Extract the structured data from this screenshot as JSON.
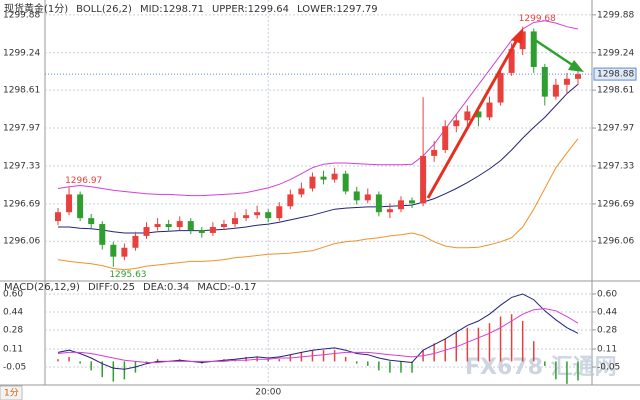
{
  "chart_data": [
    {
      "type": "candlestick",
      "title": "现货黄金(1分)",
      "indicator": "BOLL(26,2)",
      "categories": [
        null,
        null,
        null,
        null,
        null,
        null,
        null,
        null,
        null,
        null,
        null,
        null,
        null,
        null,
        null,
        null,
        null,
        null,
        null,
        "20:00",
        null,
        null,
        null,
        null,
        null,
        null,
        null,
        null,
        null,
        null,
        null,
        null,
        null,
        null,
        null,
        null,
        null,
        null,
        null,
        null,
        null,
        null,
        null,
        null,
        null,
        null,
        null,
        null
      ],
      "open": [
        1296.4,
        1296.55,
        1296.85,
        1296.45,
        1296.35,
        1296.0,
        1295.8,
        1295.95,
        1296.15,
        1296.3,
        1296.35,
        1296.3,
        1296.4,
        1296.25,
        1296.2,
        1296.3,
        1296.35,
        1296.45,
        1296.5,
        1296.55,
        1296.45,
        1296.65,
        1296.85,
        1296.95,
        1297.15,
        1297.1,
        1297.2,
        1296.9,
        1296.75,
        1296.85,
        1296.55,
        1296.6,
        1296.75,
        1296.7,
        1297.5,
        1297.6,
        1298.0,
        1298.1,
        1298.25,
        1298.15,
        1298.4,
        1298.9,
        1299.3,
        1299.6,
        1299.0,
        1298.5,
        1298.7,
        1298.8
      ],
      "high": [
        1296.62,
        1296.97,
        1296.9,
        1296.52,
        1296.4,
        1296.05,
        1296.02,
        1296.22,
        1296.38,
        1296.45,
        1296.42,
        1296.48,
        1296.45,
        1296.3,
        1296.38,
        1296.42,
        1296.55,
        1296.6,
        1296.66,
        1296.6,
        1296.72,
        1296.93,
        1297.05,
        1297.22,
        1297.25,
        1297.3,
        1297.25,
        1296.98,
        1296.95,
        1296.9,
        1296.7,
        1296.82,
        1296.8,
        1298.49,
        1297.75,
        1298.1,
        1298.2,
        1298.35,
        1298.3,
        1298.5,
        1299.0,
        1299.4,
        1299.68,
        1299.65,
        1299.05,
        1298.8,
        1298.9,
        1298.95
      ],
      "low": [
        1296.33,
        1296.5,
        1296.4,
        1296.28,
        1295.92,
        1295.63,
        1295.74,
        1295.9,
        1296.1,
        1296.24,
        1296.22,
        1296.25,
        1296.18,
        1296.12,
        1296.15,
        1296.25,
        1296.3,
        1296.4,
        1296.44,
        1296.38,
        1296.4,
        1296.6,
        1296.8,
        1296.9,
        1297.02,
        1297.05,
        1296.85,
        1296.68,
        1296.7,
        1296.48,
        1296.45,
        1296.55,
        1296.62,
        1296.65,
        1297.4,
        1297.55,
        1297.9,
        1298.0,
        1298.0,
        1298.1,
        1298.35,
        1298.85,
        1299.2,
        1298.9,
        1298.35,
        1298.45,
        1298.55,
        1298.7
      ],
      "close": [
        1296.55,
        1296.85,
        1296.45,
        1296.35,
        1296.0,
        1295.8,
        1295.95,
        1296.15,
        1296.3,
        1296.35,
        1296.3,
        1296.4,
        1296.25,
        1296.2,
        1296.3,
        1296.35,
        1296.45,
        1296.5,
        1296.55,
        1296.45,
        1296.65,
        1296.85,
        1296.95,
        1297.15,
        1297.1,
        1297.2,
        1296.9,
        1296.75,
        1296.85,
        1296.55,
        1296.6,
        1296.75,
        1296.7,
        1297.5,
        1297.6,
        1298.0,
        1298.1,
        1298.25,
        1298.15,
        1298.4,
        1298.9,
        1299.3,
        1299.6,
        1299.0,
        1298.5,
        1298.7,
        1298.8,
        1298.88
      ],
      "up_color": "#e8413d",
      "down_color": "#2e9e2e",
      "series": [
        {
          "name": "MID:1298.71",
          "color": "#23237a",
          "values": [
            1296.3,
            1296.3,
            1296.28,
            1296.27,
            1296.25,
            1296.22,
            1296.2,
            1296.2,
            1296.2,
            1296.22,
            1296.23,
            1296.24,
            1296.24,
            1296.24,
            1296.25,
            1296.26,
            1296.28,
            1296.3,
            1296.33,
            1296.35,
            1296.38,
            1296.42,
            1296.46,
            1296.5,
            1296.55,
            1296.6,
            1296.62,
            1296.63,
            1296.64,
            1296.64,
            1296.65,
            1296.66,
            1296.67,
            1296.72,
            1296.78,
            1296.86,
            1296.95,
            1297.05,
            1297.16,
            1297.28,
            1297.42,
            1297.6,
            1297.8,
            1297.98,
            1298.15,
            1298.35,
            1298.55,
            1298.71
          ]
        },
        {
          "name": "UPPER:1299.64",
          "color": "#d63fd6",
          "values": [
            1296.95,
            1296.98,
            1297.0,
            1296.98,
            1296.95,
            1296.92,
            1296.9,
            1296.88,
            1296.86,
            1296.85,
            1296.85,
            1296.84,
            1296.83,
            1296.83,
            1296.84,
            1296.85,
            1296.86,
            1296.88,
            1296.92,
            1296.96,
            1297.02,
            1297.1,
            1297.2,
            1297.3,
            1297.36,
            1297.38,
            1297.38,
            1297.37,
            1297.36,
            1297.35,
            1297.35,
            1297.35,
            1297.36,
            1297.5,
            1297.7,
            1297.95,
            1298.2,
            1298.45,
            1298.7,
            1298.95,
            1299.2,
            1299.45,
            1299.64,
            1299.75,
            1299.78,
            1299.74,
            1299.68,
            1299.64
          ]
        },
        {
          "name": "LOWER:1297.79",
          "color": "#f0922a",
          "values": [
            1295.75,
            1295.72,
            1295.7,
            1295.68,
            1295.65,
            1295.6,
            1295.58,
            1295.6,
            1295.64,
            1295.66,
            1295.68,
            1295.7,
            1295.72,
            1295.72,
            1295.73,
            1295.75,
            1295.78,
            1295.8,
            1295.82,
            1295.84,
            1295.85,
            1295.86,
            1295.88,
            1295.9,
            1295.96,
            1296.02,
            1296.05,
            1296.07,
            1296.1,
            1296.12,
            1296.15,
            1296.17,
            1296.2,
            1296.15,
            1296.05,
            1295.98,
            1295.95,
            1295.95,
            1295.96,
            1296.0,
            1296.05,
            1296.12,
            1296.3,
            1296.6,
            1296.95,
            1297.3,
            1297.55,
            1297.79
          ]
        }
      ],
      "ylim": [
        1295.44,
        1300.13
      ],
      "yticks": [
        1299.88,
        1299.24,
        1298.61,
        1297.97,
        1297.33,
        1296.69,
        1296.06
      ],
      "grid": true
    },
    {
      "type": "macd",
      "title": "MACD(26,12,9)",
      "series": [
        {
          "name": "DIFF:0.25",
          "color": "#23237a",
          "values": [
            0.08,
            0.1,
            0.07,
            0.03,
            -0.02,
            -0.06,
            -0.07,
            -0.05,
            -0.02,
            0.0,
            0.0,
            0.01,
            0.0,
            -0.01,
            0.0,
            0.01,
            0.02,
            0.03,
            0.04,
            0.03,
            0.04,
            0.06,
            0.08,
            0.1,
            0.11,
            0.12,
            0.1,
            0.07,
            0.06,
            0.03,
            0.01,
            0.0,
            -0.01,
            0.1,
            0.15,
            0.2,
            0.26,
            0.32,
            0.36,
            0.42,
            0.5,
            0.57,
            0.6,
            0.55,
            0.45,
            0.37,
            0.3,
            0.25
          ]
        },
        {
          "name": "DEA:0.34",
          "color": "#d63fd6",
          "values": [
            0.07,
            0.08,
            0.08,
            0.07,
            0.05,
            0.03,
            0.01,
            0.0,
            -0.01,
            -0.01,
            0.0,
            0.0,
            0.0,
            0.0,
            0.0,
            0.0,
            0.01,
            0.01,
            0.02,
            0.02,
            0.03,
            0.03,
            0.04,
            0.05,
            0.06,
            0.07,
            0.08,
            0.08,
            0.08,
            0.07,
            0.06,
            0.05,
            0.04,
            0.05,
            0.07,
            0.1,
            0.13,
            0.17,
            0.21,
            0.25,
            0.3,
            0.36,
            0.42,
            0.46,
            0.47,
            0.45,
            0.4,
            0.34
          ]
        },
        {
          "name": "MACD:-0.17",
          "color": "#f0922a",
          "kind": "bar",
          "pos_color": "#e8413d",
          "neg_color": "#2e9e2e",
          "values": [
            0.02,
            0.04,
            -0.02,
            -0.08,
            -0.14,
            -0.18,
            -0.16,
            -0.1,
            -0.02,
            0.02,
            0.0,
            0.02,
            0.0,
            -0.02,
            0.0,
            0.02,
            0.02,
            0.04,
            0.04,
            0.02,
            0.02,
            0.06,
            0.08,
            0.1,
            0.1,
            0.1,
            0.04,
            -0.02,
            -0.04,
            -0.08,
            -0.1,
            -0.1,
            -0.1,
            0.1,
            0.16,
            0.2,
            0.26,
            0.3,
            0.3,
            0.34,
            0.4,
            0.42,
            0.36,
            0.18,
            -0.04,
            -0.16,
            -0.2,
            -0.17
          ]
        }
      ],
      "ylim": [
        -0.21,
        0.68
      ],
      "yticks": [
        {
          "value": 0.6,
          "label": "0.60"
        },
        0.44,
        0.28,
        0.11,
        -0.05
      ],
      "grid": true
    }
  ],
  "footer": {
    "period": "1分"
  },
  "watermark": "FX678 汇通网"
}
